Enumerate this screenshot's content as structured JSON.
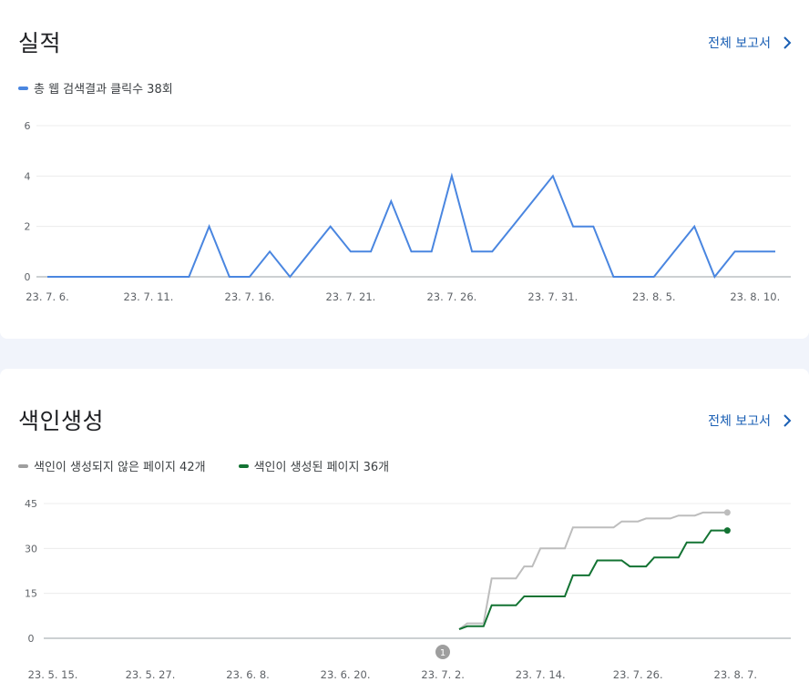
{
  "performance": {
    "title": "실적",
    "report_link": "전체 보고서",
    "legend": [
      {
        "label": "총 웹 검색결과 클릭수 38회",
        "color": "#4a86e0"
      }
    ]
  },
  "indexing": {
    "title": "색인생성",
    "report_link": "전체 보고서",
    "legend": [
      {
        "label": "색인이 생성되지 않은 페이지 42개",
        "color": "#9e9e9e"
      },
      {
        "label": "색인이 생성된 페이지 36개",
        "color": "#137333"
      }
    ],
    "annotation_marker": "1"
  },
  "chart_data": [
    {
      "type": "line",
      "x": [
        "23. 7. 6.",
        "23. 7. 7.",
        "23. 7. 8.",
        "23. 7. 9.",
        "23. 7. 10.",
        "23. 7. 11.",
        "23. 7. 12.",
        "23. 7. 13.",
        "23. 7. 14.",
        "23. 7. 15.",
        "23. 7. 16.",
        "23. 7. 17.",
        "23. 7. 18.",
        "23. 7. 19.",
        "23. 7. 20.",
        "23. 7. 21.",
        "23. 7. 22.",
        "23. 7. 23.",
        "23. 7. 24.",
        "23. 7. 25.",
        "23. 7. 26.",
        "23. 7. 27.",
        "23. 7. 28.",
        "23. 7. 29.",
        "23. 7. 30.",
        "23. 7. 31.",
        "23. 8. 1.",
        "23. 8. 2.",
        "23. 8. 3.",
        "23. 8. 4.",
        "23. 8. 5.",
        "23. 8. 6.",
        "23. 8. 7.",
        "23. 8. 8.",
        "23. 8. 9.",
        "23. 8. 10.",
        "23. 8. 11."
      ],
      "tick_labels": [
        "23. 7. 6.",
        "23. 7. 11.",
        "23. 7. 16.",
        "23. 7. 21.",
        "23. 7. 26.",
        "23. 7. 31.",
        "23. 8. 5.",
        "23. 8. 10."
      ],
      "series": [
        {
          "name": "총 웹 검색결과 클릭수 38회",
          "color": "#4a86e0",
          "values": [
            0,
            0,
            0,
            0,
            0,
            0,
            0,
            0,
            2,
            0,
            0,
            1,
            0,
            1,
            2,
            1,
            1,
            3,
            1,
            1,
            4,
            1,
            1,
            2,
            3,
            4,
            2,
            2,
            0,
            0,
            0,
            1,
            2,
            0,
            1,
            1,
            1
          ]
        }
      ],
      "yticks": [
        0,
        2,
        4,
        6
      ],
      "ylim": [
        0,
        6
      ],
      "grid": true
    },
    {
      "type": "line",
      "x_range": [
        "23. 5. 15.",
        "23. 8. 11."
      ],
      "tick_labels": [
        "23. 5. 15.",
        "23. 5. 27.",
        "23. 6. 8.",
        "23. 6. 20.",
        "23. 7. 2.",
        "23. 7. 14.",
        "23. 7. 26.",
        "23. 8. 7."
      ],
      "tick_day_offsets": [
        0,
        12,
        24,
        36,
        48,
        60,
        72,
        84
      ],
      "x_day_offsets_start": 50,
      "series": [
        {
          "name": "색인이 생성되지 않은 페이지 42개",
          "color": "#bdbdbd",
          "values": [
            3,
            5,
            5,
            5,
            20,
            20,
            20,
            20,
            24,
            24,
            30,
            30,
            30,
            30,
            37,
            37,
            37,
            37,
            37,
            37,
            39,
            39,
            39,
            40,
            40,
            40,
            40,
            41,
            41,
            41,
            42,
            42,
            42,
            42
          ]
        },
        {
          "name": "색인이 생성된 페이지 36개",
          "color": "#137333",
          "values": [
            3,
            4,
            4,
            4,
            11,
            11,
            11,
            11,
            14,
            14,
            14,
            14,
            14,
            14,
            21,
            21,
            21,
            26,
            26,
            26,
            26,
            24,
            24,
            24,
            27,
            27,
            27,
            27,
            32,
            32,
            32,
            36,
            36,
            36
          ]
        }
      ],
      "yticks": [
        0,
        15,
        30,
        45
      ],
      "ylim": [
        0,
        45
      ],
      "grid": true
    }
  ]
}
